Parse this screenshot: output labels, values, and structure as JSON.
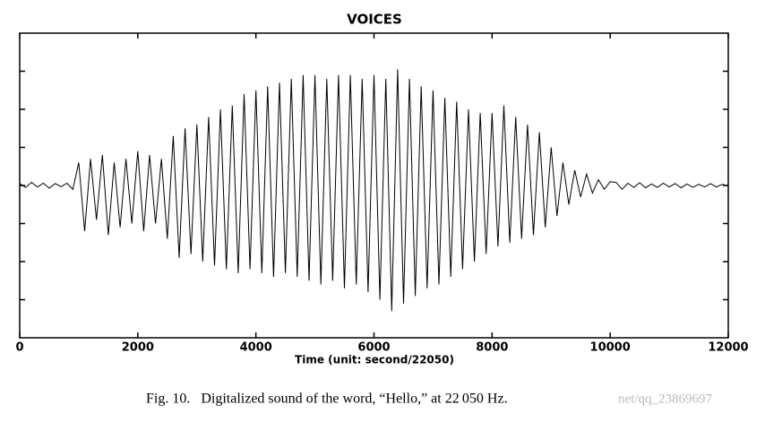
{
  "chart_data": {
    "type": "line",
    "title": "VOICES",
    "xlabel": "Time (unit: second/22050)",
    "caption": "Fig. 10.   Digitalized sound of the word, “Hello,” at 22 050 Hz.",
    "watermark": "net/qq_23869697",
    "xlim": [
      0,
      12000
    ],
    "xticks": [
      0,
      2000,
      4000,
      6000,
      8000,
      10000,
      12000
    ],
    "ylim": [
      -4,
      4
    ],
    "yticks": [
      -3,
      -2,
      -1,
      0,
      1,
      2,
      3
    ],
    "ytick_labels": false,
    "series": [
      {
        "name": "Hello",
        "color": "#000000",
        "x": [
          0,
          100,
          200,
          300,
          400,
          500,
          600,
          700,
          800,
          900,
          1000,
          1100,
          1200,
          1300,
          1400,
          1500,
          1600,
          1700,
          1800,
          1900,
          2000,
          2100,
          2200,
          2300,
          2400,
          2500,
          2600,
          2700,
          2800,
          2900,
          3000,
          3100,
          3200,
          3300,
          3400,
          3500,
          3600,
          3700,
          3800,
          3900,
          4000,
          4100,
          4200,
          4300,
          4400,
          4500,
          4600,
          4700,
          4800,
          4900,
          5000,
          5100,
          5200,
          5300,
          5400,
          5500,
          5600,
          5700,
          5800,
          5900,
          6000,
          6100,
          6200,
          6300,
          6400,
          6500,
          6600,
          6700,
          6800,
          6900,
          7000,
          7100,
          7200,
          7300,
          7400,
          7500,
          7600,
          7700,
          7800,
          7900,
          8000,
          8100,
          8200,
          8300,
          8400,
          8500,
          8600,
          8700,
          8800,
          8900,
          9000,
          9100,
          9200,
          9300,
          9400,
          9500,
          9600,
          9700,
          9800,
          9900,
          10000,
          10100,
          10200,
          10300,
          10400,
          10500,
          10600,
          10700,
          10800,
          10900,
          11000,
          11100,
          11200,
          11300,
          11400,
          11500,
          11600,
          11700,
          11800,
          11900,
          12000
        ],
        "values": [
          0.05,
          -0.05,
          0.08,
          -0.04,
          0.06,
          -0.07,
          0.05,
          -0.03,
          0.06,
          -0.1,
          0.6,
          -1.2,
          0.7,
          -0.9,
          0.8,
          -1.3,
          0.6,
          -1.1,
          0.7,
          -1.0,
          0.9,
          -1.2,
          0.8,
          -1.0,
          0.7,
          -1.4,
          1.3,
          -1.9,
          1.5,
          -1.8,
          1.6,
          -2.0,
          1.8,
          -2.1,
          2.0,
          -2.2,
          2.1,
          -2.3,
          2.4,
          -2.2,
          2.5,
          -2.3,
          2.6,
          -2.4,
          2.7,
          -2.3,
          2.8,
          -2.4,
          2.9,
          -2.5,
          2.9,
          -2.6,
          2.8,
          -2.5,
          2.9,
          -2.7,
          2.9,
          -2.6,
          2.8,
          -2.8,
          2.9,
          -3.0,
          2.8,
          -3.3,
          3.05,
          -3.1,
          2.8,
          -2.9,
          2.6,
          -2.7,
          2.5,
          -2.6,
          2.3,
          -2.4,
          2.2,
          -2.2,
          2.0,
          -2.0,
          1.9,
          -1.8,
          1.9,
          -1.6,
          2.1,
          -1.5,
          1.8,
          -1.4,
          1.6,
          -1.3,
          1.4,
          -1.1,
          1.0,
          -0.8,
          0.6,
          -0.5,
          0.4,
          -0.3,
          0.3,
          -0.2,
          0.15,
          -0.1,
          0.1,
          0.08,
          -0.1,
          0.06,
          -0.05,
          0.07,
          -0.06,
          0.04,
          -0.05,
          0.06,
          -0.04,
          0.05,
          -0.06,
          0.04,
          -0.05,
          0.03,
          -0.04,
          0.05,
          -0.04,
          0.03,
          -0.02
        ]
      }
    ]
  }
}
